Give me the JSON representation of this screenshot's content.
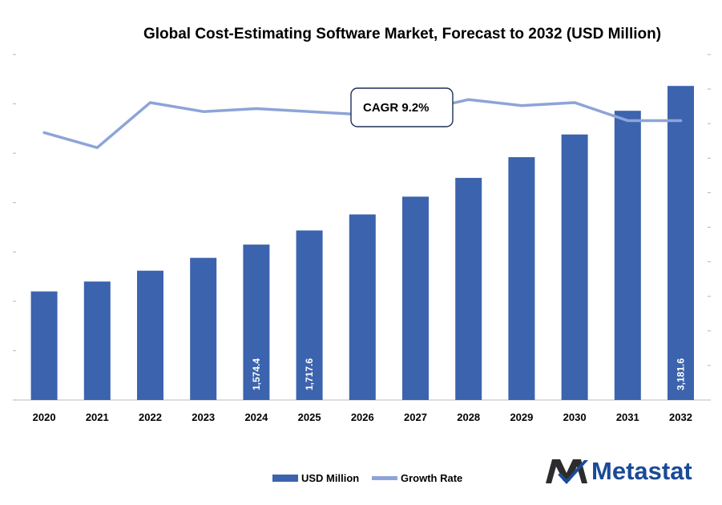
{
  "chart_data": {
    "type": "bar",
    "title": "Global Cost-Estimating Software Market, Forecast to 2032 (USD Million)",
    "categories": [
      "2020",
      "2021",
      "2022",
      "2023",
      "2024",
      "2025",
      "2026",
      "2027",
      "2028",
      "2029",
      "2030",
      "2031",
      "2032"
    ],
    "series": [
      {
        "name": "USD Million",
        "type": "bar",
        "color": "#3c63ad",
        "values": [
          1100,
          1200,
          1310,
          1440,
          1574.4,
          1717.6,
          1880,
          2060,
          2250,
          2460,
          2690,
          2930,
          3181.6
        ],
        "value_labels": {
          "2024": "1,574.4",
          "2025": "1,717.6",
          "2032": "3,181.6"
        }
      },
      {
        "name": "Growth Rate",
        "type": "line",
        "color": "#8ea4d8",
        "values": [
          8.9,
          8.4,
          9.9,
          9.6,
          9.7,
          9.6,
          9.5,
          9.6,
          10.0,
          9.8,
          9.9,
          9.3,
          9.3
        ]
      }
    ],
    "ylim_primary": [
      0,
      3500
    ],
    "ylim_secondary": [
      0,
      11.5
    ],
    "legend_position": "bottom-center",
    "grid": false
  },
  "annotation": {
    "cagr": "CAGR 9.2%"
  },
  "legend": {
    "bar_label": "USD Million",
    "line_label": "Growth Rate"
  },
  "brand": {
    "name": "Metastat",
    "color": "#1a4a97",
    "accent": "#2c2c2c"
  }
}
